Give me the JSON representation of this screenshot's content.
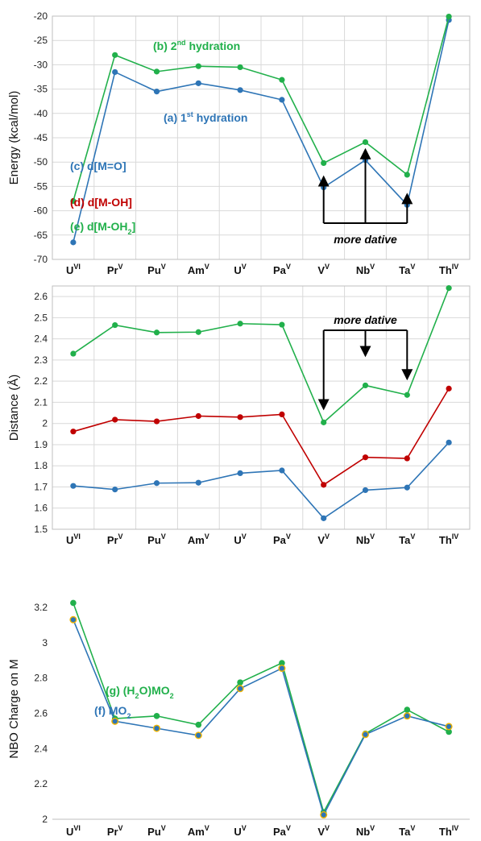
{
  "chart_data": [
    {
      "type": "line",
      "categories": [
        "U|VI",
        "Pr|V",
        "Pu|V",
        "Am|V",
        "U|V",
        "Pa|V",
        "V|V",
        "Nb|V",
        "Ta|V",
        "Th|IV"
      ],
      "ylabel": "Energy (kcal/mol)",
      "ylim": [
        -70,
        -20
      ],
      "yticks": [
        -70,
        -65,
        -60,
        -55,
        -50,
        -45,
        -40,
        -35,
        -30,
        -25,
        -20
      ],
      "grid": true,
      "series": [
        {
          "name": "(a) 1st hydration",
          "label_main": "(a) 1",
          "label_sup": "st",
          "label_tail": " hydration",
          "color": "#2e75b6",
          "values": [
            -66.5,
            -31.5,
            -35.5,
            -33.8,
            -35.2,
            -37.2,
            -55.2,
            -49.6,
            -58.8,
            -20.8
          ]
        },
        {
          "name": "(b) 2nd hydration",
          "label_main": "(b) 2",
          "label_sup": "nd",
          "label_tail": " hydration",
          "color": "#21b04b",
          "values": [
            -58.0,
            -28.0,
            -31.4,
            -30.3,
            -30.5,
            -33.1,
            -50.2,
            -45.9,
            -52.6,
            -20.1
          ]
        }
      ],
      "annotation": "more dative"
    },
    {
      "type": "line",
      "categories": [
        "U|VI",
        "Pr|V",
        "Pu|V",
        "Am|V",
        "U|V",
        "Pa|V",
        "V|V",
        "Nb|V",
        "Ta|V",
        "Th|IV"
      ],
      "ylabel": "Distance (Å)",
      "ylim": [
        1.5,
        2.65
      ],
      "yticks": [
        1.5,
        1.6,
        1.7,
        1.8,
        1.9,
        2.0,
        2.1,
        2.2,
        2.3,
        2.4,
        2.5,
        2.6
      ],
      "grid": true,
      "series": [
        {
          "name": "(e) d[M-OH2]",
          "label_main": "(e) d[M-OH",
          "label_sub": "2",
          "label_tail": "]",
          "color": "#21b04b",
          "values": [
            2.33,
            2.465,
            2.43,
            2.432,
            2.472,
            2.467,
            2.005,
            2.18,
            2.135,
            2.64
          ]
        },
        {
          "name": "(d) d[M-OH]",
          "label_main": "(d) d[M-OH]",
          "color": "#c00000",
          "values": [
            1.962,
            2.018,
            2.01,
            2.035,
            2.03,
            2.043,
            1.71,
            1.84,
            1.835,
            2.165
          ]
        },
        {
          "name": "(c) d[M=O]",
          "label_main": "(c) d[M=O]",
          "color": "#2e75b6",
          "values": [
            1.705,
            1.688,
            1.718,
            1.72,
            1.765,
            1.778,
            1.552,
            1.685,
            1.697,
            1.91
          ]
        }
      ],
      "annotation": "more dative"
    },
    {
      "type": "line",
      "categories": [
        "U|VI",
        "Pr|V",
        "Pu|V",
        "Am|V",
        "U|V",
        "Pa|V",
        "V|V",
        "Nb|V",
        "Ta|V",
        "Th|IV"
      ],
      "ylabel": "NBO Charge on M",
      "ylim": [
        2.0,
        3.25
      ],
      "yticks": [
        2.0,
        2.2,
        2.4,
        2.6,
        2.8,
        3.0,
        3.2
      ],
      "grid": false,
      "series": [
        {
          "name": "(g) (H2O)MO2",
          "label_main": "(g) (H",
          "label_sub": "2",
          "label_mid": "O)MO",
          "label_sub2": "2",
          "color": "#21b04b",
          "values": [
            3.225,
            2.57,
            2.585,
            2.535,
            2.775,
            2.885,
            2.04,
            2.485,
            2.62,
            2.495
          ]
        },
        {
          "name": "(f) MO2",
          "label_main": "(f) MO",
          "label_sub": "2",
          "color": "#2e75b6",
          "values": [
            3.13,
            2.555,
            2.515,
            2.475,
            2.74,
            2.855,
            2.025,
            2.48,
            2.585,
            2.525
          ]
        }
      ]
    }
  ]
}
